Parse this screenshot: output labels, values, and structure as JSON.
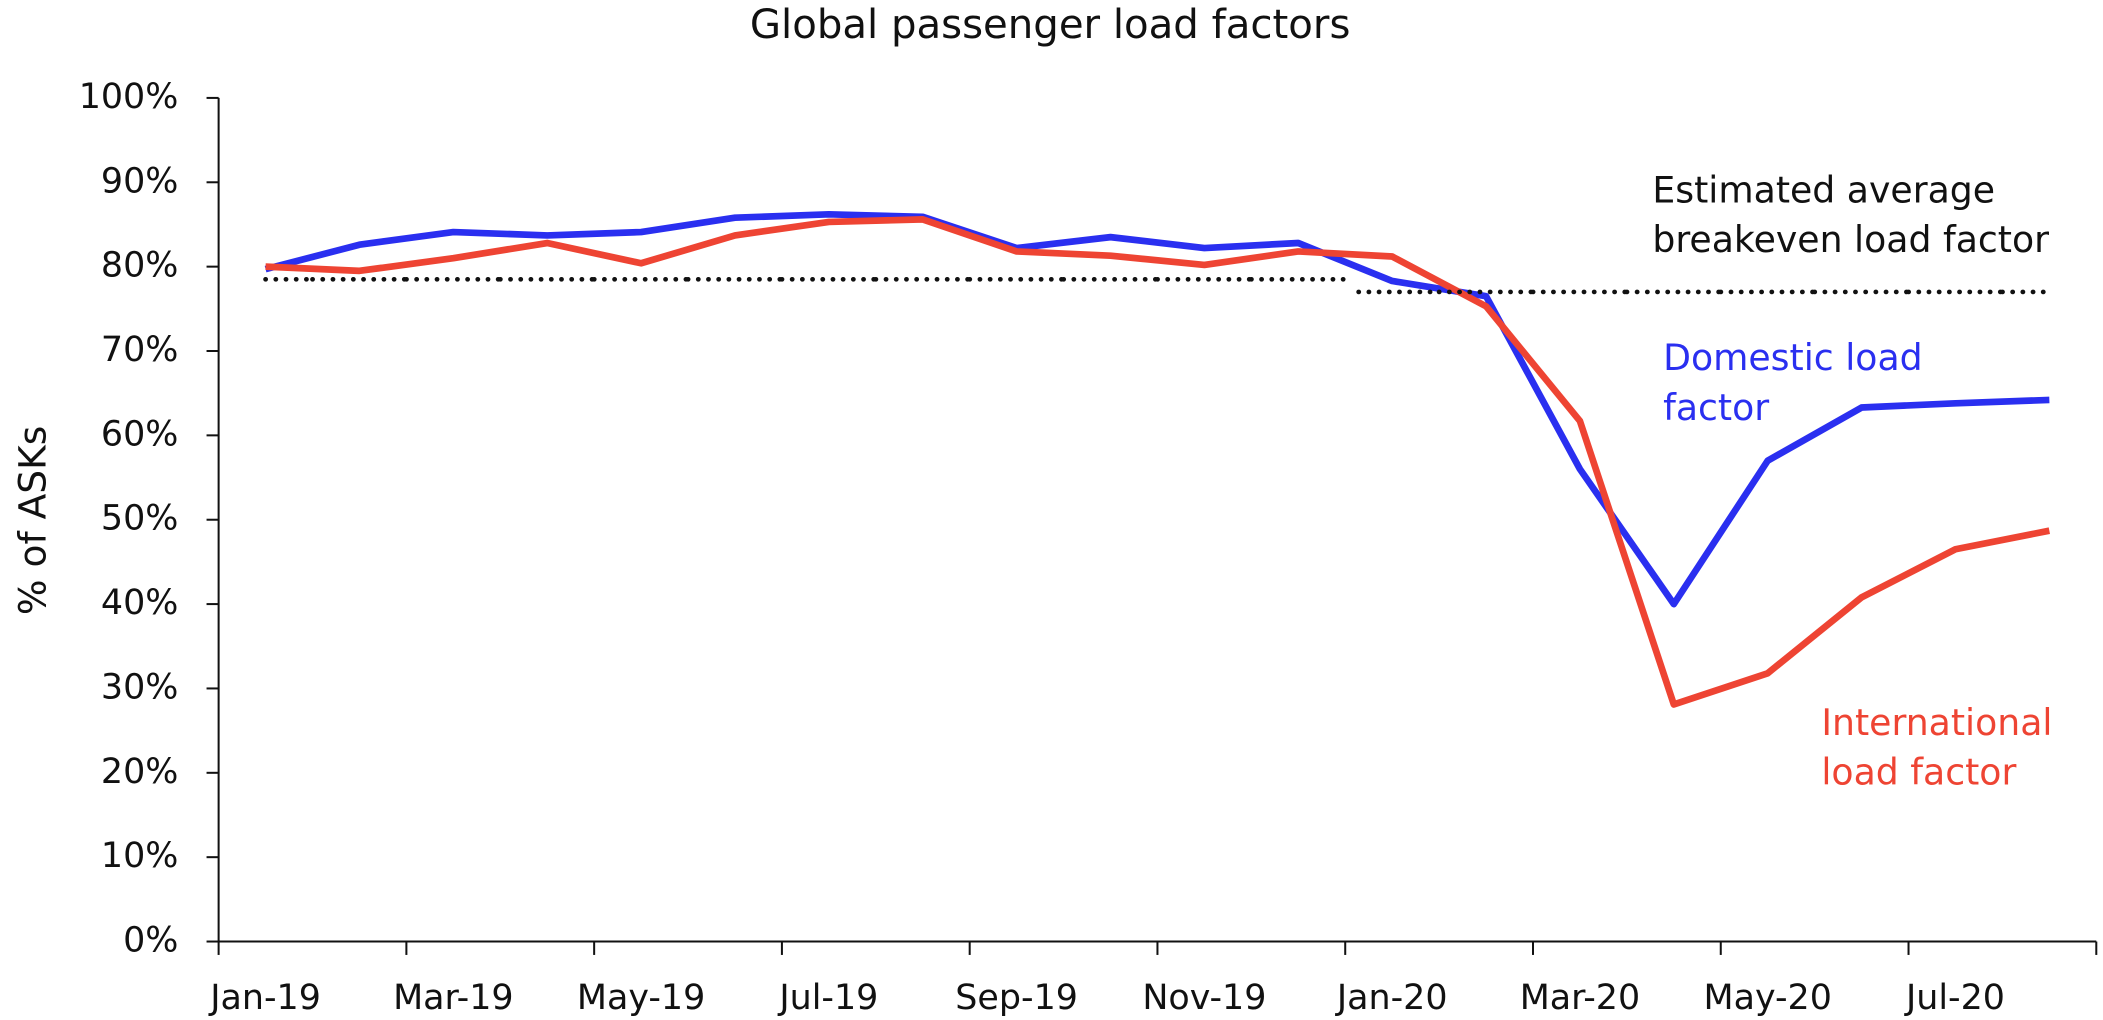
{
  "chart_data": {
    "type": "line",
    "title": "Global passenger load factors",
    "y_label": "% of ASKs",
    "categories": [
      "Jan-19",
      null,
      "Mar-19",
      null,
      "May-19",
      null,
      "Jul-19",
      null,
      "Sep-19",
      null,
      "Nov-19",
      null,
      "Jan-20",
      null,
      "Mar-20",
      null,
      "May-20",
      null,
      "Jul-20",
      null
    ],
    "ylim": [
      0,
      100
    ],
    "yticks": [
      {
        "value": 0,
        "label": "0%"
      },
      {
        "value": 10,
        "label": "10%"
      },
      {
        "value": 20,
        "label": "20%"
      },
      {
        "value": 30,
        "label": "30%"
      },
      {
        "value": 40,
        "label": "40%"
      },
      {
        "value": 50,
        "label": "50%"
      },
      {
        "value": 60,
        "label": "60%"
      },
      {
        "value": 70,
        "label": "70%"
      },
      {
        "value": 80,
        "label": "80%"
      },
      {
        "value": 90,
        "label": "90%"
      },
      {
        "value": 100,
        "label": "100%"
      }
    ],
    "series": [
      {
        "name": "Domestic load factor",
        "color": "#2a2ff0",
        "values": [
          79.7,
          82.6,
          84.1,
          83.7,
          84.1,
          85.8,
          86.2,
          85.9,
          82.2,
          83.5,
          82.2,
          82.8,
          78.3,
          76.5,
          56,
          40,
          57,
          63.3,
          63.8,
          64.2
        ]
      },
      {
        "name": "International load factor",
        "color": "#ee4433",
        "values": [
          80.0,
          79.5,
          81.0,
          82.8,
          80.4,
          83.7,
          85.3,
          85.6,
          81.8,
          81.3,
          80.2,
          81.8,
          81.2,
          75.3,
          61.7,
          28.1,
          31.8,
          40.8,
          46.5,
          48.7
        ]
      },
      {
        "name": "Estimated average breakeven load factor",
        "color": "#111111",
        "style": "dotted",
        "values": [
          78.5,
          78.5,
          78.5,
          78.5,
          78.5,
          78.5,
          78.5,
          78.5,
          78.5,
          78.5,
          78.5,
          78.5,
          77,
          77,
          77,
          77,
          77,
          77,
          77,
          77
        ]
      }
    ]
  }
}
